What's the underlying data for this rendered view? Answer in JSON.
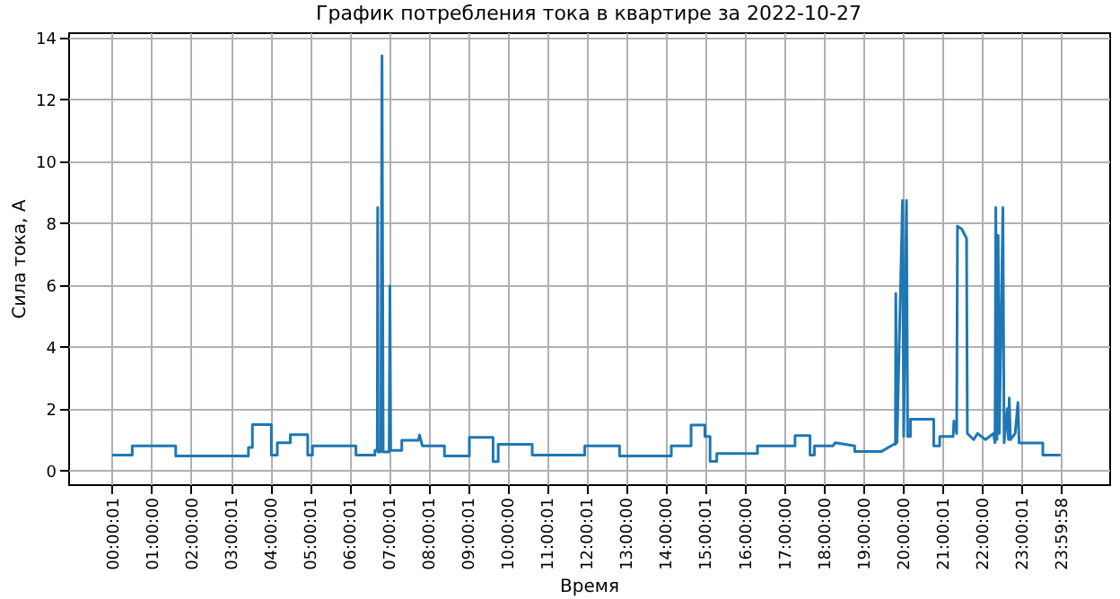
{
  "chart_data": {
    "type": "line",
    "title": "График потребления тока в квартире за 2022-10-27",
    "xlabel": "Время",
    "ylabel": "Сила тока, А",
    "xlim": [
      -1.11,
      25.23
    ],
    "ylim": [
      -0.44,
      14.16
    ],
    "xticks": [
      {
        "value": 0.0003,
        "label": "00:00:01"
      },
      {
        "value": 1,
        "label": "01:00:00"
      },
      {
        "value": 2,
        "label": "02:00:00"
      },
      {
        "value": 3.0003,
        "label": "03:00:01"
      },
      {
        "value": 4,
        "label": "04:00:00"
      },
      {
        "value": 5.0003,
        "label": "05:00:01"
      },
      {
        "value": 6.0003,
        "label": "06:00:01"
      },
      {
        "value": 7.0003,
        "label": "07:00:01"
      },
      {
        "value": 8.0003,
        "label": "08:00:01"
      },
      {
        "value": 9.0003,
        "label": "09:00:01"
      },
      {
        "value": 10,
        "label": "10:00:00"
      },
      {
        "value": 11.0003,
        "label": "11:00:01"
      },
      {
        "value": 12.0003,
        "label": "12:00:01"
      },
      {
        "value": 13,
        "label": "13:00:00"
      },
      {
        "value": 14,
        "label": "14:00:00"
      },
      {
        "value": 15.0003,
        "label": "15:00:01"
      },
      {
        "value": 16,
        "label": "16:00:00"
      },
      {
        "value": 17,
        "label": "17:00:00"
      },
      {
        "value": 18,
        "label": "18:00:00"
      },
      {
        "value": 19,
        "label": "19:00:00"
      },
      {
        "value": 20,
        "label": "20:00:00"
      },
      {
        "value": 21.0003,
        "label": "21:00:01"
      },
      {
        "value": 22,
        "label": "22:00:00"
      },
      {
        "value": 23.0003,
        "label": "23:00:01"
      },
      {
        "value": 23.9994,
        "label": "23:59:58"
      }
    ],
    "yticks": [
      0,
      2,
      4,
      6,
      8,
      10,
      12,
      14
    ],
    "grid": true,
    "legend": false,
    "marker": "none",
    "line_style": "solid",
    "series": [
      {
        "color": "#1f77b4",
        "x": [
          0.0,
          0.51,
          0.51,
          1.61,
          1.61,
          3.45,
          3.45,
          3.55,
          3.55,
          4.03,
          4.03,
          4.18,
          4.18,
          4.51,
          4.51,
          4.95,
          4.95,
          5.07,
          5.07,
          6.17,
          6.17,
          6.65,
          6.65,
          6.71,
          6.72,
          6.73,
          6.8,
          6.83,
          6.86,
          7.01,
          7.03,
          7.05,
          7.33,
          7.33,
          7.75,
          7.78,
          7.85,
          8.41,
          8.41,
          9.04,
          9.04,
          9.64,
          9.64,
          9.77,
          9.77,
          10.63,
          10.63,
          11.96,
          11.96,
          12.84,
          12.84,
          14.15,
          14.15,
          14.65,
          14.65,
          15.0,
          15.0,
          15.13,
          15.13,
          15.3,
          15.3,
          16.33,
          16.33,
          17.28,
          17.28,
          17.66,
          17.66,
          17.77,
          17.77,
          18.24,
          18.3,
          18.79,
          18.79,
          19.47,
          19.78,
          19.82,
          19.83,
          19.86,
          20.0,
          20.03,
          20.1,
          20.13,
          20.2,
          20.2,
          20.79,
          20.79,
          20.94,
          20.94,
          21.28,
          21.3,
          21.37,
          21.39,
          21.5,
          21.62,
          21.64,
          21.8,
          21.9,
          22.0,
          22.1,
          22.3,
          22.34,
          22.36,
          22.39,
          22.42,
          22.45,
          22.54,
          22.57,
          22.65,
          22.68,
          22.7,
          22.73,
          22.85,
          22.92,
          22.95,
          23.55,
          23.55,
          24.0
        ],
        "values": [
          0.5,
          0.5,
          0.8,
          0.8,
          0.47,
          0.47,
          0.75,
          0.75,
          1.49,
          1.49,
          0.5,
          0.5,
          0.9,
          0.9,
          1.16,
          1.16,
          0.5,
          0.5,
          0.8,
          0.8,
          0.5,
          0.5,
          0.65,
          0.65,
          8.5,
          0.6,
          0.6,
          13.4,
          0.6,
          0.6,
          5.96,
          0.65,
          0.65,
          0.98,
          0.98,
          1.15,
          0.8,
          0.8,
          0.47,
          0.47,
          1.07,
          1.07,
          0.29,
          0.29,
          0.85,
          0.85,
          0.5,
          0.5,
          0.8,
          0.8,
          0.47,
          0.47,
          0.8,
          0.8,
          1.47,
          1.47,
          1.1,
          1.1,
          0.3,
          0.3,
          0.55,
          0.55,
          0.8,
          0.8,
          1.13,
          1.13,
          0.5,
          0.5,
          0.8,
          0.8,
          0.9,
          0.8,
          0.62,
          0.62,
          0.85,
          0.85,
          5.72,
          0.9,
          8.73,
          1.1,
          8.73,
          1.1,
          1.1,
          1.66,
          1.66,
          0.8,
          0.8,
          1.1,
          1.1,
          1.6,
          1.2,
          7.9,
          7.8,
          7.5,
          1.2,
          1.0,
          1.2,
          1.1,
          1.0,
          1.2,
          0.9,
          8.5,
          1.0,
          7.6,
          1.2,
          8.5,
          0.9,
          2.0,
          1.0,
          2.35,
          1.0,
          1.2,
          2.2,
          0.89,
          0.89,
          0.5,
          0.5
        ]
      }
    ]
  }
}
